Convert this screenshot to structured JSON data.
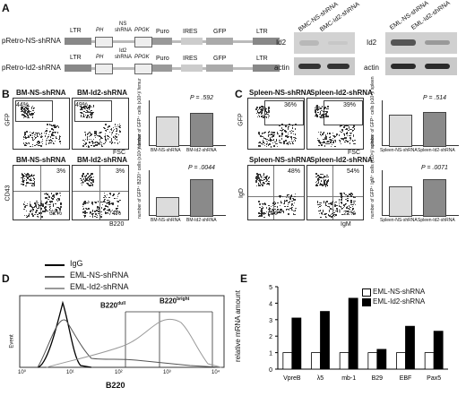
{
  "panels": {
    "a": "A",
    "b": "B",
    "c": "C",
    "d": "D",
    "e": "E"
  },
  "construct": {
    "rows": [
      {
        "name": "pRetro-NS-shRNA",
        "ltr": "LTR",
        "ph": "PH",
        "shrna": "NS\nshRNA",
        "ppgk": "PPGK",
        "puro": "Puro",
        "ires": "IRES",
        "gfp": "GFP",
        "ltr2": "LTR",
        "shrna_top": "NS",
        "shrna_bot": "shRNA"
      },
      {
        "name": "pRetro-Id2-shRNA",
        "ltr": "LTR",
        "ph": "PH",
        "shrna": "Id2\nshRNA",
        "ppgk": "PPGK",
        "puro": "Puro",
        "ires": "IRES",
        "gfp": "GFP",
        "ltr2": "LTR",
        "shrna_top": "Id2",
        "shrna_bot": "shRNA"
      }
    ]
  },
  "western": {
    "left": {
      "lanes": [
        "BMC-NS-shRNA",
        "BMC-Id2-shRNA"
      ],
      "rows": [
        "Id2",
        "actin"
      ]
    },
    "right": {
      "lanes": [
        "EML-NS-shRNA",
        "EML-Id2-shRNA"
      ],
      "rows": [
        "Id2",
        "actin"
      ]
    }
  },
  "panelB": {
    "top": {
      "plots": [
        {
          "title": "BM-NS-shRNA",
          "pct": "44%"
        },
        {
          "title": "BM-Id2-shRNA",
          "pct": "49%"
        }
      ],
      "yaxis": "GFP",
      "xaxis": "FSC",
      "bar": {
        "p": "P = .592",
        "ylabel": "number of GFP⁺ cells (x10⁶)/ femur",
        "cats": [
          "BM-NS-shRNA",
          "BM-Id2-shRNA"
        ],
        "values": [
          3.5,
          3.9
        ],
        "ylim": [
          0,
          6
        ]
      }
    },
    "bottom": {
      "plots": [
        {
          "title": "BM-NS-shRNA",
          "pct_tr": "3%",
          "pct_br": "32%"
        },
        {
          "title": "BM-Id2-shRNA",
          "pct_tr": "3%",
          "pct_br": "74%"
        }
      ],
      "yaxis": "CD43",
      "xaxis": "B220",
      "bar": {
        "p": "P = .0044",
        "ylabel": "number of GFP⁺ B220⁺ cells (x10⁶)/ femur",
        "cats": [
          "BM-NS-shRNA",
          "BM-Id2-shRNA"
        ],
        "values": [
          1.4,
          2.7
        ],
        "ylim": [
          0,
          3.5
        ]
      }
    }
  },
  "panelC": {
    "top": {
      "plots": [
        {
          "title": "Spleen-NS-shRNA",
          "pct": "36%"
        },
        {
          "title": "Spleen-Id2-shRNA",
          "pct": "39%"
        }
      ],
      "yaxis": "GFP",
      "xaxis": "FSC",
      "bar": {
        "p": "P = .514",
        "ylabel": "number of GFP⁺ cells (x10⁶)/ spleen",
        "cats": [
          "Spleen-NS-shRNA",
          "Spleen-Id2-shRNA"
        ],
        "values": [
          40,
          44
        ],
        "ylim": [
          0,
          60
        ]
      }
    },
    "bottom": {
      "plots": [
        {
          "title": "Spleen-NS-shRNA",
          "pct_tr": "48%",
          "pct_bl": "6%"
        },
        {
          "title": "Spleen-Id2-shRNA",
          "pct_tr": "54%",
          "pct_bl": "22%"
        }
      ],
      "yaxis": "IgD",
      "xaxis": "IgM",
      "bar": {
        "p": "P = .0071",
        "ylabel": "number of GFP⁺ IgM⁺ cells (x10⁶)/ spleen",
        "cats": [
          "Spleen-NS-shRNA",
          "Spleen-Id2-shRNA"
        ],
        "values": [
          22,
          28
        ],
        "ylim": [
          0,
          35
        ]
      }
    }
  },
  "panelD": {
    "legend": [
      {
        "name": "IgG",
        "color": "#000000"
      },
      {
        "name": "EML-NS-shRNA",
        "color": "#555555"
      },
      {
        "name": "EML-Id2-shRNA",
        "color": "#999999"
      }
    ],
    "xlabel": "B220",
    "ylabel": "Event",
    "b220dull": "B220",
    "dull": "dull",
    "b220bright": "B220",
    "bright": "bright",
    "ticks": [
      "10⁰",
      "10¹",
      "10²",
      "10³",
      "10⁴"
    ]
  },
  "chart_data": {
    "type": "bar",
    "categories": [
      "VpreB",
      "λ5",
      "mb-1",
      "B29",
      "EBF",
      "Pax5"
    ],
    "series": [
      {
        "name": "EML-NS-shRNA",
        "values": [
          1,
          1,
          1,
          1,
          1,
          1
        ],
        "color": "#ffffff"
      },
      {
        "name": "EML-Id2-shRNA",
        "values": [
          3.1,
          3.5,
          4.3,
          1.2,
          2.6,
          2.3
        ],
        "color": "#000000"
      }
    ],
    "ylabel": "relative mRNA amount",
    "ylim": [
      0,
      5
    ],
    "yticks": [
      "0",
      "1",
      "2",
      "3",
      "4",
      "5"
    ],
    "legend": "top-right"
  }
}
